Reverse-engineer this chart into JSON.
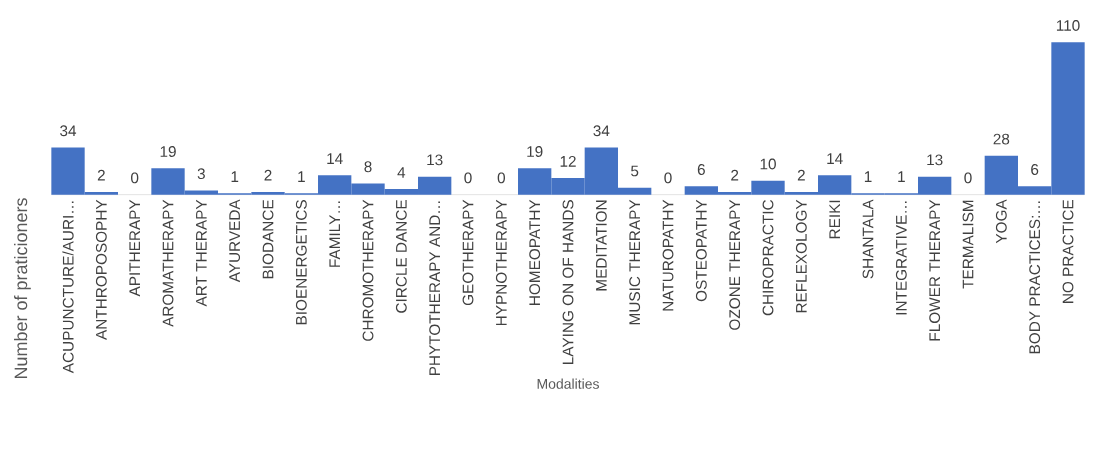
{
  "chart_data": {
    "type": "bar",
    "xlabel": "Modalities",
    "ylabel": "Number of praticioners",
    "categories": [
      "ACUPUNCTURE/AURI…",
      "ANTHROPOSOPHY",
      "APITHERAPY",
      "AROMATHERAPY",
      "ART THERAPY",
      "AYURVEDA",
      "BIODANCE",
      "BIOENERGETICS",
      "FAMILY…",
      "CHROMOTHERAPY",
      "CIRCLE DANCE",
      "PHYTOTHERAPY AND…",
      "GEOTHERAPY",
      "HYPNOTHERAPY",
      "HOMEOPATHY",
      "LAYING ON OF HANDS",
      "MEDITATION",
      "MUSIC THERAPY",
      "NATUROPATHY",
      "OSTEOPATHY",
      "OZONE THERAPY",
      "CHIROPRACTIC",
      "REFLEXOLOGY",
      "REIKI",
      "SHANTALA",
      "INTEGRATIVE…",
      "FLOWER THERAPY",
      "TERMALISM",
      "YOGA",
      "BODY PRACTICES:…",
      "NO PRACTICE"
    ],
    "values": [
      34,
      2,
      0,
      19,
      3,
      1,
      2,
      1,
      14,
      8,
      4,
      13,
      0,
      0,
      19,
      12,
      34,
      5,
      0,
      6,
      2,
      10,
      2,
      14,
      1,
      1,
      13,
      0,
      28,
      6,
      110
    ],
    "color": "#4472c4",
    "data_labels": true
  }
}
